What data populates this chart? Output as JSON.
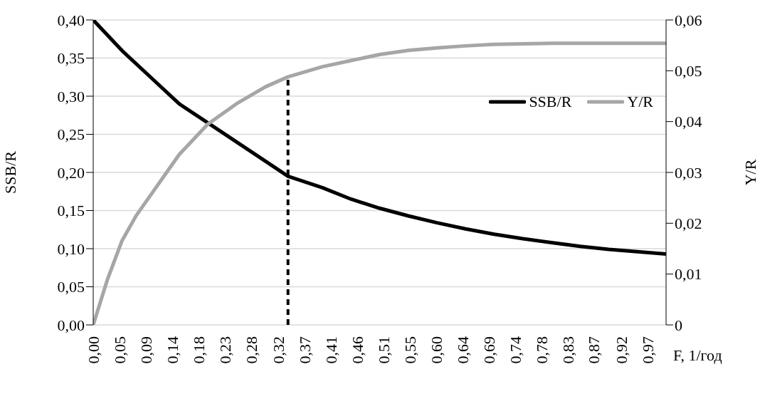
{
  "chart_data": {
    "type": "line",
    "xlabel": "F, 1/год",
    "ylabel": "SSB/R",
    "y2label": "Y/R",
    "xlim": [
      0,
      1
    ],
    "xticks": [
      {
        "value": 0,
        "label": "0,00"
      },
      {
        "value": 0.046,
        "label": "0,05"
      },
      {
        "value": 0.092,
        "label": "0,09"
      },
      {
        "value": 0.138,
        "label": "0,14"
      },
      {
        "value": 0.184,
        "label": "0,18"
      },
      {
        "value": 0.23,
        "label": "0,23"
      },
      {
        "value": 0.277,
        "label": "0,28"
      },
      {
        "value": 0.323,
        "label": "0,32"
      },
      {
        "value": 0.369,
        "label": "0,37"
      },
      {
        "value": 0.415,
        "label": "0,41"
      },
      {
        "value": 0.461,
        "label": "0,46"
      },
      {
        "value": 0.507,
        "label": "0,51"
      },
      {
        "value": 0.553,
        "label": "0,55"
      },
      {
        "value": 0.599,
        "label": "0,60"
      },
      {
        "value": 0.645,
        "label": "0,64"
      },
      {
        "value": 0.691,
        "label": "0,69"
      },
      {
        "value": 0.737,
        "label": "0,74"
      },
      {
        "value": 0.783,
        "label": "0,78"
      },
      {
        "value": 0.829,
        "label": "0,83"
      },
      {
        "value": 0.874,
        "label": "0,87"
      },
      {
        "value": 0.922,
        "label": "0,92"
      },
      {
        "value": 0.968,
        "label": "0,97"
      }
    ],
    "ylim": [
      0,
      0.4
    ],
    "yticks": [
      {
        "value": 0,
        "label": "0,00"
      },
      {
        "value": 0.05,
        "label": "0,05"
      },
      {
        "value": 0.1,
        "label": "0,10"
      },
      {
        "value": 0.15,
        "label": "0,15"
      },
      {
        "value": 0.2,
        "label": "0,20"
      },
      {
        "value": 0.25,
        "label": "0,25"
      },
      {
        "value": 0.3,
        "label": "0,30"
      },
      {
        "value": 0.35,
        "label": "0,35"
      },
      {
        "value": 0.4,
        "label": "0,40"
      }
    ],
    "y2lim": [
      0,
      0.06
    ],
    "y2ticks": [
      0,
      {
        "value": 0.01,
        "label": "0,01"
      },
      {
        "value": 0.02,
        "label": "0,02"
      },
      {
        "value": 0.03,
        "label": "0,03"
      },
      {
        "value": 0.04,
        "label": "0,04"
      },
      {
        "value": 0.05,
        "label": "0,05"
      },
      {
        "value": 0.06,
        "label": "0,06"
      }
    ],
    "series": [
      {
        "name": "SSB/R",
        "color": "#000000",
        "x": [
          0,
          0.05,
          0.1,
          0.15,
          0.2,
          0.25,
          0.3,
          0.34,
          0.4,
          0.45,
          0.5,
          0.55,
          0.6,
          0.65,
          0.7,
          0.75,
          0.8,
          0.85,
          0.9,
          0.95,
          1
        ],
        "values": [
          0.4,
          0.36,
          0.325,
          0.29,
          0.265,
          0.24,
          0.215,
          0.195,
          0.18,
          0.165,
          0.153,
          0.143,
          0.134,
          0.126,
          0.119,
          0.113,
          0.108,
          0.103,
          0.099,
          0.096,
          0.093
        ]
      },
      {
        "name": "Y/R",
        "color": "#a6a6a6",
        "axis": "y2",
        "x": [
          0,
          0.025,
          0.05,
          0.075,
          0.1,
          0.15,
          0.2,
          0.25,
          0.3,
          0.34,
          0.4,
          0.45,
          0.5,
          0.55,
          0.6,
          0.65,
          0.7,
          0.75,
          0.8,
          0.9,
          1
        ],
        "values": [
          0,
          0.009,
          0.0165,
          0.0215,
          0.0255,
          0.0335,
          0.0395,
          0.0435,
          0.0468,
          0.0488,
          0.0508,
          0.052,
          0.0532,
          0.054,
          0.0545,
          0.0549,
          0.0552,
          0.0553,
          0.0554,
          0.0554,
          0.0554
        ]
      }
    ],
    "ref_lines": [
      {
        "axis": "x",
        "value": 0.34,
        "color": "#000000",
        "line_style": "dashed"
      }
    ],
    "grid": "y",
    "legend": "right",
    "line_style": "solid",
    "marker": "none"
  }
}
